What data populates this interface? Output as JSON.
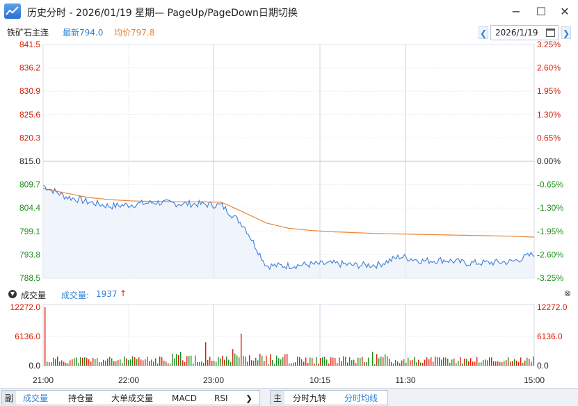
{
  "window": {
    "title": "历史分时 - 2026/01/19 星期— PageUp/PageDown日期切换"
  },
  "info": {
    "symbol": "铁矿石主连",
    "latest": "最新794.0",
    "avg": "均价797.8",
    "date": "2026/1/19"
  },
  "price_axis": {
    "left": [
      "841.5",
      "836.2",
      "830.9",
      "825.6",
      "820.3",
      "815.0",
      "809.7",
      "804.4",
      "799.1",
      "793.8",
      "788.5"
    ],
    "right": [
      "3.25%",
      "2.60%",
      "1.95%",
      "1.30%",
      "0.65%",
      "0.00%",
      "-0.65%",
      "-1.30%",
      "-1.95%",
      "-2.60%",
      "-3.25%"
    ]
  },
  "volume": {
    "title": "成交量",
    "current_label": "成交量:",
    "current_value": "1937",
    "axis": [
      "12272.0",
      "6136.0",
      "0.0"
    ]
  },
  "time_axis": [
    "21:00",
    "22:00",
    "23:00",
    "10:15",
    "11:30",
    "15:00"
  ],
  "colors": {
    "up": "#d81e06",
    "down": "#1f8f1f",
    "price_line": "#4a86d8",
    "avg_line": "#e8843a",
    "neutral": "#222222",
    "grid": "#d6dee8"
  },
  "chart_data": [
    {
      "type": "line",
      "ylim": [
        788.5,
        841.5
      ],
      "x": [
        "21:00",
        "21:15",
        "21:30",
        "21:45",
        "22:00",
        "22:15",
        "22:30",
        "22:45",
        "23:00",
        "09:15",
        "09:30",
        "09:45",
        "10:15",
        "10:30",
        "10:45",
        "11:15",
        "11:30",
        "13:45",
        "14:00",
        "14:15",
        "14:30",
        "14:45",
        "15:00"
      ],
      "series": [
        {
          "values": [
            809.5,
            807.0,
            805.8,
            804.8,
            805.2,
            805.7,
            805.4,
            805.3,
            805.0,
            800.4,
            791.3,
            791.3,
            791.6,
            791.8,
            791.4,
            791.5,
            793.4,
            792.4,
            792.6,
            791.9,
            792.0,
            792.2,
            794.0
          ]
        },
        {
          "values": [
            808.8,
            807.8,
            806.8,
            806.3,
            806.0,
            805.9,
            805.8,
            805.8,
            805.7,
            803.4,
            801.0,
            799.8,
            799.3,
            799.0,
            798.8,
            798.6,
            798.5,
            798.4,
            798.3,
            798.2,
            798.1,
            798.0,
            797.8
          ]
        }
      ]
    },
    {
      "type": "bar",
      "ylim": [
        0,
        12272
      ],
      "x": [
        "21:00",
        "22:00",
        "23:00",
        "10:15",
        "11:30",
        "15:00"
      ],
      "series": [
        {
          "values": [
            12272,
            1400,
            1100,
            1800,
            1500,
            1937
          ]
        }
      ]
    }
  ],
  "bottom_tabs": {
    "sub_label": "副",
    "tabs": [
      "成交量",
      "持仓量",
      "大单成交量",
      "MACD",
      "RSI"
    ],
    "more": "❯",
    "main_label": "主",
    "main_tabs": [
      "分时九转",
      "分时均线"
    ]
  }
}
